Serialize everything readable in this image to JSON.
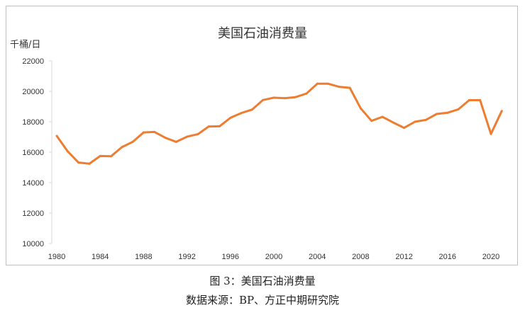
{
  "chart_data": {
    "type": "line",
    "title": "美国石油消费量",
    "ylabel": "千桶/日",
    "xlabel": "",
    "ylim": [
      10000,
      22000
    ],
    "yticks": [
      10000,
      12000,
      14000,
      16000,
      18000,
      20000,
      22000
    ],
    "xticks": [
      1980,
      1984,
      1988,
      1992,
      1996,
      2000,
      2004,
      2008,
      2012,
      2016,
      2020
    ],
    "grid": false,
    "line_color": "#ED7D31",
    "x": [
      1980,
      1981,
      1982,
      1983,
      1984,
      1985,
      1986,
      1987,
      1988,
      1989,
      1990,
      1991,
      1992,
      1993,
      1994,
      1995,
      1996,
      1997,
      1998,
      1999,
      2000,
      2001,
      2002,
      2003,
      2004,
      2005,
      2006,
      2007,
      2008,
      2009,
      2010,
      2011,
      2012,
      2013,
      2014,
      2015,
      2016,
      2017,
      2018,
      2019,
      2020,
      2021
    ],
    "series": [
      {
        "values": [
          17070,
          16060,
          15320,
          15240,
          15750,
          15730,
          16330,
          16680,
          17300,
          17330,
          16950,
          16680,
          17020,
          17180,
          17690,
          17700,
          18260,
          18570,
          18800,
          19430,
          19580,
          19550,
          19620,
          19850,
          20500,
          20500,
          20300,
          20230,
          18880,
          18060,
          18320,
          17950,
          17600,
          18000,
          18120,
          18510,
          18590,
          18820,
          19420,
          19420,
          17200,
          18710
        ]
      }
    ]
  },
  "caption": {
    "figure": "图 3：美国石油消费量",
    "source": "数据来源：BP、方正中期研究院"
  }
}
